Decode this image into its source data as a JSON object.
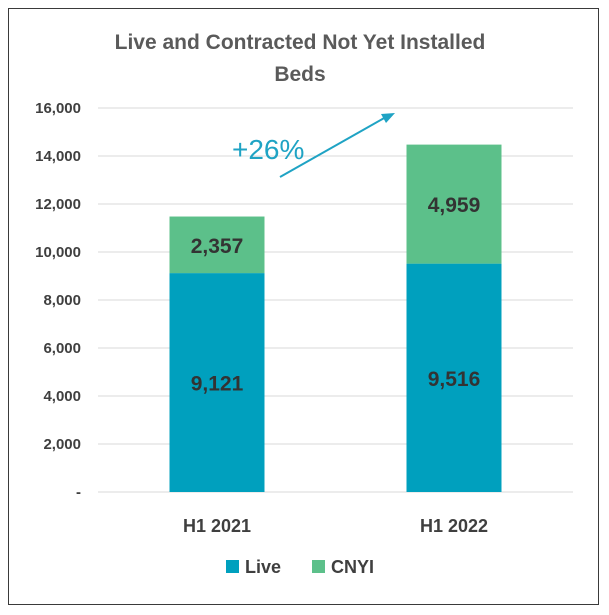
{
  "chart_data": {
    "type": "bar",
    "stacked": true,
    "title_lines": [
      "Live and Contracted Not Yet Installed",
      "Beds"
    ],
    "categories": [
      "H1 2021",
      "H1 2022"
    ],
    "series": [
      {
        "name": "Live",
        "values": [
          9121,
          9516
        ],
        "labels": [
          "9,121",
          "9,516"
        ],
        "color": "#00a0be"
      },
      {
        "name": "CNYI",
        "values": [
          2357,
          4959
        ],
        "labels": [
          "2,357",
          "4,959"
        ],
        "color": "#5cc08a"
      }
    ],
    "ylim": [
      0,
      16000
    ],
    "yticks": [
      0,
      2000,
      4000,
      6000,
      8000,
      10000,
      12000,
      14000,
      16000
    ],
    "ytick_labels": [
      "-",
      "2,000",
      "4,000",
      "6,000",
      "8,000",
      "10,000",
      "12,000",
      "14,000",
      "16,000"
    ],
    "grid": true,
    "legend_position": "bottom",
    "annotation": {
      "text": "+26%",
      "color": "#1fa3c4"
    }
  }
}
